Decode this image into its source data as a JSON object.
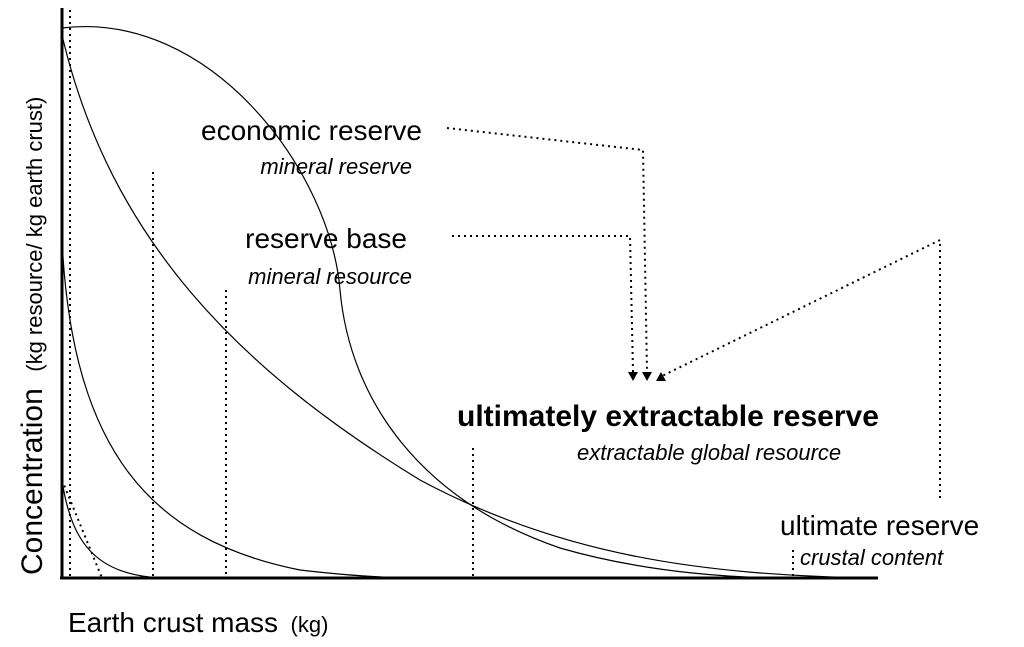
{
  "y_axis": {
    "label": "Concentration",
    "unit": "(kg resource/ kg earth crust)"
  },
  "x_axis": {
    "label": "Earth crust mass",
    "unit": "(kg)"
  },
  "labels": [
    {
      "title": "economic reserve",
      "subtitle": "mineral reserve"
    },
    {
      "title": "reserve base",
      "subtitle": "mineral resource"
    },
    {
      "title": "ultimately extractable reserve",
      "subtitle": "extractable global resource"
    },
    {
      "title": "ultimate reserve",
      "subtitle": "crustal content"
    }
  ]
}
